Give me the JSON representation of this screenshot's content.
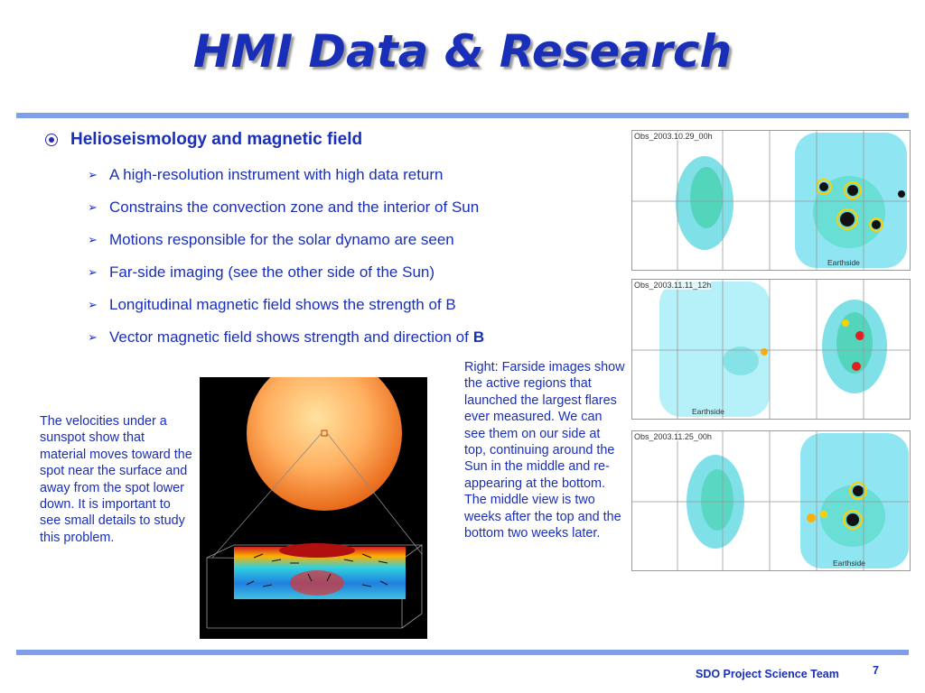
{
  "slide": {
    "title": "HMI Data & Research",
    "main_bullet": "Helioseismology and magnetic field",
    "sub_bullets": [
      "A high-resolution instrument with high data return",
      "Constrains the convection zone and the interior of Sun",
      "Motions responsible for the solar dynamo are seen",
      "Far-side imaging (see the other side of the Sun)",
      "Longitudinal magnetic field shows the strength of B"
    ],
    "last_bullet": {
      "text": "Vector magnetic field shows strength and direction of",
      "bold": "B"
    },
    "left_caption": "The velocities under a sunspot show that material moves toward the spot near the surface and away from the spot lower down. It is important to see small details to study this problem.",
    "right_caption": "Right: Farside images show the active regions that launched the largest flares ever measured. We can see them on our side at top, continuing around the Sun in the middle and re-appearing at the bottom. The middle view is two weeks after the top and the bottom two weeks later.",
    "farside_panels": [
      {
        "label": "Obs_2003.10.29_00h",
        "earthside": "Earthside"
      },
      {
        "label": "Obs_2003.11.11_12h",
        "earthside": "Earthside"
      },
      {
        "label": "Obs_2003.11.25_00h",
        "earthside": "Earthside"
      }
    ],
    "footer_team": "SDO Project Science Team",
    "page_number": "7"
  },
  "colors": {
    "title_blue": "#1a2fb8",
    "rule_blue": "#7fa0e8",
    "map_cyan": "#8fe6f2"
  }
}
